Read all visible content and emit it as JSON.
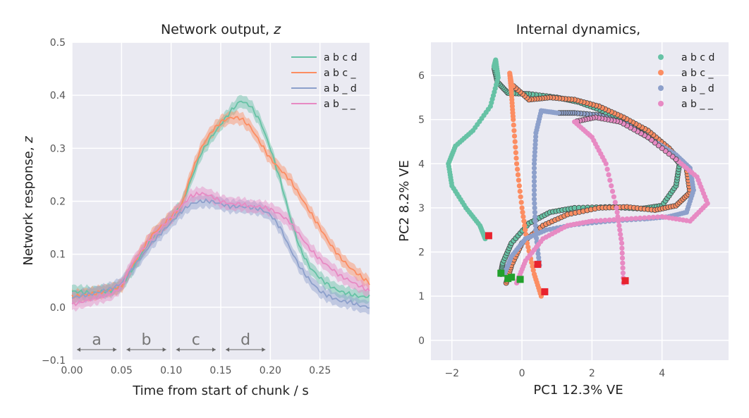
{
  "chart_data": [
    {
      "type": "line",
      "title_text": "Network output, ",
      "title_symbol": "z",
      "xlabel": "Time from start of chunk / s",
      "ylabel_text": "Network response, ",
      "ylabel_symbol": "z",
      "xlim": [
        0,
        0.3
      ],
      "ylim": [
        -0.1,
        0.5
      ],
      "xticks": [
        {
          "value": 0.0,
          "label": "0.00"
        },
        {
          "value": 0.05,
          "label": "0.05"
        },
        {
          "value": 0.1,
          "label": "0.10"
        },
        {
          "value": 0.15,
          "label": "0.15"
        },
        {
          "value": 0.2,
          "label": "0.20"
        },
        {
          "value": 0.25,
          "label": "0.25"
        }
      ],
      "yticks": [
        {
          "value": -0.1,
          "label": "−0.1"
        },
        {
          "value": 0.0,
          "label": "0.0"
        },
        {
          "value": 0.1,
          "label": "0.1"
        },
        {
          "value": 0.2,
          "label": "0.2"
        },
        {
          "value": 0.3,
          "label": "0.3"
        },
        {
          "value": 0.4,
          "label": "0.4"
        },
        {
          "value": 0.5,
          "label": "0.5"
        }
      ],
      "grid": true,
      "legend_position": "top-right",
      "band_halfwidth": 0.012,
      "phases": [
        {
          "label": "a",
          "x0": 0.005,
          "x1": 0.045,
          "y": -0.08
        },
        {
          "label": "b",
          "x0": 0.055,
          "x1": 0.095,
          "y": -0.08
        },
        {
          "label": "c",
          "x0": 0.105,
          "x1": 0.145,
          "y": -0.08
        },
        {
          "label": "d",
          "x0": 0.155,
          "x1": 0.195,
          "y": -0.08
        }
      ],
      "series": [
        {
          "name": "a b c d",
          "color": "#66c2a5",
          "x": [
            0,
            0.02,
            0.04,
            0.05,
            0.06,
            0.08,
            0.1,
            0.11,
            0.12,
            0.13,
            0.14,
            0.15,
            0.16,
            0.17,
            0.18,
            0.19,
            0.2,
            0.21,
            0.22,
            0.23,
            0.24,
            0.25,
            0.26,
            0.27,
            0.28,
            0.29,
            0.3
          ],
          "y": [
            0.03,
            0.027,
            0.032,
            0.04,
            0.07,
            0.13,
            0.17,
            0.19,
            0.24,
            0.29,
            0.32,
            0.345,
            0.37,
            0.39,
            0.38,
            0.35,
            0.3,
            0.24,
            0.17,
            0.11,
            0.075,
            0.055,
            0.04,
            0.03,
            0.025,
            0.02,
            0.02
          ]
        },
        {
          "name": "a b c _",
          "color": "#fc8d62",
          "x": [
            0,
            0.02,
            0.04,
            0.05,
            0.06,
            0.08,
            0.1,
            0.11,
            0.12,
            0.13,
            0.14,
            0.15,
            0.16,
            0.17,
            0.18,
            0.19,
            0.2,
            0.21,
            0.22,
            0.23,
            0.24,
            0.25,
            0.26,
            0.27,
            0.28,
            0.29,
            0.3
          ],
          "y": [
            0.02,
            0.025,
            0.033,
            0.04,
            0.075,
            0.135,
            0.17,
            0.19,
            0.25,
            0.3,
            0.33,
            0.35,
            0.358,
            0.357,
            0.34,
            0.31,
            0.28,
            0.26,
            0.24,
            0.21,
            0.18,
            0.15,
            0.12,
            0.095,
            0.075,
            0.06,
            0.045
          ]
        },
        {
          "name": "a b _ d",
          "color": "#8da0cb",
          "x": [
            0,
            0.02,
            0.04,
            0.05,
            0.06,
            0.08,
            0.1,
            0.11,
            0.12,
            0.13,
            0.14,
            0.15,
            0.16,
            0.17,
            0.18,
            0.19,
            0.2,
            0.21,
            0.22,
            0.23,
            0.24,
            0.25,
            0.26,
            0.27,
            0.28,
            0.29,
            0.3
          ],
          "y": [
            0.018,
            0.025,
            0.035,
            0.045,
            0.07,
            0.12,
            0.16,
            0.18,
            0.195,
            0.2,
            0.2,
            0.195,
            0.19,
            0.19,
            0.188,
            0.185,
            0.175,
            0.15,
            0.11,
            0.075,
            0.05,
            0.03,
            0.02,
            0.012,
            0.01,
            0.003,
            0.0
          ]
        },
        {
          "name": "a b _ _",
          "color": "#e78ac3",
          "x": [
            0,
            0.02,
            0.04,
            0.05,
            0.06,
            0.08,
            0.1,
            0.11,
            0.12,
            0.13,
            0.14,
            0.15,
            0.16,
            0.17,
            0.18,
            0.19,
            0.2,
            0.21,
            0.22,
            0.23,
            0.24,
            0.25,
            0.26,
            0.27,
            0.28,
            0.29,
            0.3
          ],
          "y": [
            0.005,
            0.015,
            0.025,
            0.04,
            0.08,
            0.13,
            0.17,
            0.19,
            0.21,
            0.215,
            0.21,
            0.2,
            0.195,
            0.195,
            0.19,
            0.19,
            0.185,
            0.175,
            0.16,
            0.135,
            0.11,
            0.09,
            0.075,
            0.06,
            0.05,
            0.04,
            0.03
          ]
        }
      ]
    },
    {
      "type": "scatter",
      "title": "Internal dynamics,",
      "xlabel": "PC1 12.3% VE",
      "ylabel": "PC2 8.2% VE",
      "xlim": [
        -2.6,
        5.9
      ],
      "ylim": [
        -0.45,
        6.75
      ],
      "xticks": [
        {
          "value": -2,
          "label": "−2"
        },
        {
          "value": 0,
          "label": "0"
        },
        {
          "value": 2,
          "label": "2"
        },
        {
          "value": 4,
          "label": "4"
        }
      ],
      "yticks": [
        {
          "value": 0,
          "label": "0"
        },
        {
          "value": 1,
          "label": "1"
        },
        {
          "value": 2,
          "label": "2"
        },
        {
          "value": 3,
          "label": "3"
        },
        {
          "value": 4,
          "label": "4"
        },
        {
          "value": 5,
          "label": "5"
        },
        {
          "value": 6,
          "label": "6"
        }
      ],
      "grid": true,
      "legend_position": "top-right",
      "marker_outline": "#444444",
      "start_marker_color": "#22a02c",
      "end_marker_color": "#e8232e",
      "series": [
        {
          "name": "a b c d",
          "color": "#66c2a5",
          "points": [
            [
              -0.6,
              1.5
            ],
            [
              -0.55,
              1.75
            ],
            [
              -0.3,
              2.2
            ],
            [
              0.2,
              2.65
            ],
            [
              0.8,
              2.9
            ],
            [
              1.5,
              3.0
            ],
            [
              2.5,
              3.02
            ],
            [
              3.4,
              2.98
            ],
            [
              4.0,
              3.05
            ],
            [
              4.4,
              3.5
            ],
            [
              4.5,
              4.0
            ],
            [
              4.2,
              4.3
            ],
            [
              3.6,
              4.6
            ],
            [
              3.0,
              4.9
            ],
            [
              2.3,
              5.2
            ],
            [
              1.6,
              5.4
            ],
            [
              1.0,
              5.5
            ],
            [
              0.2,
              5.58
            ],
            [
              -0.4,
              5.6
            ],
            [
              -0.7,
              5.85
            ],
            [
              -0.8,
              6.2
            ],
            [
              -0.75,
              6.35
            ],
            [
              -0.68,
              5.95
            ],
            [
              -0.9,
              5.3
            ],
            [
              -1.4,
              4.75
            ],
            [
              -1.9,
              4.4
            ],
            [
              -2.1,
              4.0
            ],
            [
              -2.0,
              3.5
            ],
            [
              -1.6,
              3.0
            ],
            [
              -1.2,
              2.6
            ],
            [
              -1.05,
              2.3
            ]
          ],
          "segments": [
            [
              0,
              20
            ]
          ],
          "start": [
            -0.6,
            1.52
          ],
          "end": [
            -0.95,
            2.37
          ]
        },
        {
          "name": "a b c _",
          "color": "#fc8d62",
          "points": [
            [
              -0.45,
              1.3
            ],
            [
              -0.3,
              1.7
            ],
            [
              0.0,
              2.2
            ],
            [
              0.6,
              2.6
            ],
            [
              1.3,
              2.85
            ],
            [
              2.2,
              3.0
            ],
            [
              3.0,
              3.02
            ],
            [
              3.8,
              2.95
            ],
            [
              4.4,
              3.05
            ],
            [
              4.8,
              3.35
            ],
            [
              4.7,
              3.9
            ],
            [
              4.2,
              4.35
            ],
            [
              3.6,
              4.75
            ],
            [
              2.9,
              5.05
            ],
            [
              2.2,
              5.3
            ],
            [
              1.5,
              5.45
            ],
            [
              0.8,
              5.5
            ],
            [
              0.2,
              5.45
            ],
            [
              -0.3,
              5.8
            ],
            [
              -0.35,
              6.05
            ],
            [
              -0.3,
              5.6
            ],
            [
              -0.25,
              5.0
            ],
            [
              -0.15,
              4.0
            ],
            [
              0.0,
              3.0
            ],
            [
              0.15,
              2.2
            ],
            [
              0.35,
              1.5
            ],
            [
              0.55,
              1.0
            ]
          ],
          "segments": [
            [
              0,
              18
            ]
          ],
          "start": [
            -0.3,
            1.43
          ],
          "end": [
            0.65,
            1.1
          ]
        },
        {
          "name": "a b _ d",
          "color": "#8da0cb",
          "points": [
            [
              -0.5,
              1.5
            ],
            [
              -0.3,
              1.9
            ],
            [
              0.1,
              2.3
            ],
            [
              0.7,
              2.5
            ],
            [
              1.5,
              2.62
            ],
            [
              2.5,
              2.7
            ],
            [
              3.5,
              2.75
            ],
            [
              4.2,
              2.8
            ],
            [
              4.7,
              2.9
            ],
            [
              4.9,
              3.4
            ],
            [
              4.8,
              3.9
            ],
            [
              4.4,
              4.2
            ],
            [
              3.8,
              4.5
            ],
            [
              3.0,
              4.9
            ],
            [
              2.2,
              5.1
            ],
            [
              1.5,
              5.15
            ],
            [
              1.0,
              5.15
            ],
            [
              0.55,
              5.2
            ],
            [
              0.4,
              4.7
            ],
            [
              0.35,
              4.0
            ],
            [
              0.35,
              3.2
            ],
            [
              0.4,
              2.4
            ],
            [
              0.5,
              1.7
            ]
          ],
          "segments": [
            [
              12,
              16
            ]
          ],
          "start": [
            -0.4,
            1.4
          ],
          "end": [
            0.45,
            1.72
          ]
        },
        {
          "name": "a b _ _",
          "color": "#e78ac3",
          "points": [
            [
              -0.15,
              1.3
            ],
            [
              0.1,
              1.8
            ],
            [
              0.6,
              2.3
            ],
            [
              1.3,
              2.6
            ],
            [
              2.0,
              2.7
            ],
            [
              3.0,
              2.75
            ],
            [
              4.0,
              2.8
            ],
            [
              4.8,
              2.7
            ],
            [
              5.3,
              3.1
            ],
            [
              5.0,
              3.7
            ],
            [
              4.4,
              4.1
            ],
            [
              3.6,
              4.6
            ],
            [
              2.8,
              4.95
            ],
            [
              2.1,
              5.05
            ],
            [
              1.5,
              4.95
            ],
            [
              2.0,
              4.6
            ],
            [
              2.4,
              4.0
            ],
            [
              2.7,
              3.0
            ],
            [
              2.85,
              2.2
            ],
            [
              2.9,
              1.3
            ]
          ],
          "segments": [
            [
              10,
              14
            ]
          ],
          "start": [
            -0.05,
            1.38
          ],
          "end": [
            2.95,
            1.35
          ]
        }
      ]
    }
  ]
}
